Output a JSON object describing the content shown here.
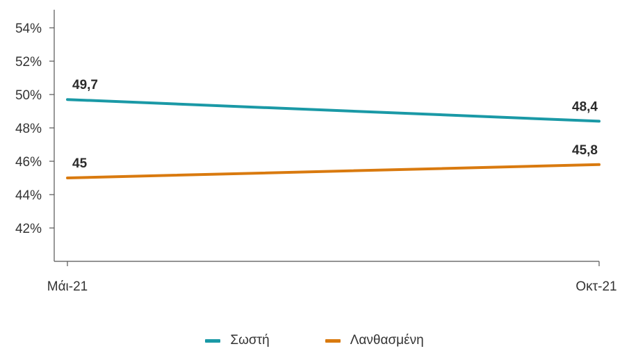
{
  "chart_data": {
    "type": "line",
    "categories": [
      "Μάι-21",
      "Οκτ-21"
    ],
    "ylim": [
      40,
      55
    ],
    "yticks": [
      42,
      44,
      46,
      48,
      50,
      52,
      54
    ],
    "ytick_labels": [
      "42%",
      "44%",
      "46%",
      "48%",
      "50%",
      "52%",
      "54%"
    ],
    "series": [
      {
        "name": "Σωστή",
        "color": "#1a99a6",
        "values": [
          49.7,
          48.4
        ],
        "labels": [
          "49,7",
          "48,4"
        ]
      },
      {
        "name": "Λανθασμένη",
        "color": "#d97a0f",
        "values": [
          45,
          45.8
        ],
        "labels": [
          "45",
          "45,8"
        ]
      }
    ],
    "grid": false,
    "legend_position": "bottom"
  }
}
